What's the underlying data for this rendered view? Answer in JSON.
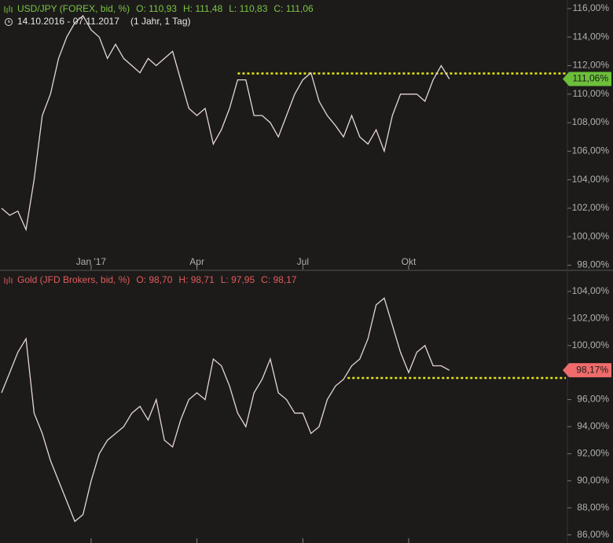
{
  "chart_data": [
    {
      "type": "line",
      "title": "USD/JPY (FOREX, bid, %)",
      "ohlc": [
        "O: 110,93",
        "H: 111,48",
        "L: 110,83",
        "C: 111,06"
      ],
      "subtitle": "14.10.2016 - 07.11.2017",
      "range_note": "(1 Jahr, 1 Tag)",
      "title_color": "#7cc443",
      "color": "#e6d6d6",
      "categories": [
        null,
        null,
        null,
        null,
        null,
        null,
        null,
        null,
        null,
        null,
        null,
        "Jan '17",
        null,
        null,
        null,
        null,
        null,
        null,
        null,
        null,
        null,
        null,
        null,
        null,
        "Apr",
        null,
        null,
        null,
        null,
        null,
        null,
        null,
        null,
        null,
        null,
        null,
        null,
        "Jul",
        null,
        null,
        null,
        null,
        null,
        null,
        null,
        null,
        null,
        null,
        null,
        null,
        "Okt",
        null,
        null,
        null,
        null,
        null
      ],
      "values": [
        102.0,
        101.5,
        101.8,
        100.5,
        104.0,
        108.5,
        110.0,
        112.5,
        114.0,
        115.0,
        115.5,
        114.5,
        114.0,
        112.5,
        113.5,
        112.5,
        112.0,
        111.5,
        112.5,
        112.0,
        112.5,
        113.0,
        111.0,
        109.0,
        108.5,
        109.0,
        106.5,
        107.5,
        109.0,
        111.0,
        111.0,
        108.5,
        108.5,
        108.0,
        107.0,
        108.5,
        110.0,
        111.0,
        111.5,
        109.5,
        108.5,
        107.8,
        107.0,
        108.5,
        107.0,
        106.5,
        107.5,
        106.0,
        108.5,
        110.0,
        110.0,
        110.0,
        109.5,
        111.0,
        112.0,
        111.06
      ],
      "ylim": [
        97.7,
        116.6
      ],
      "yticks": [
        {
          "value": 98,
          "label": "98,00%"
        },
        {
          "value": 100,
          "label": "100,00%"
        },
        {
          "value": 102,
          "label": "102,00%"
        },
        {
          "value": 104,
          "label": "104,00%"
        },
        {
          "value": 106,
          "label": "106,00%"
        },
        {
          "value": 108,
          "label": "108,00%"
        },
        {
          "value": 110,
          "label": "110,00%"
        },
        {
          "value": 112,
          "label": "112,00%"
        },
        {
          "value": 114,
          "label": "114,00%"
        },
        {
          "value": 116,
          "label": "116,00%"
        }
      ],
      "reference_line": {
        "value": 111.45,
        "start_index": 29,
        "color": "#e8e817"
      },
      "last_label": {
        "value": 111.06,
        "label": "111,06%",
        "color": "#6cbf3a"
      }
    },
    {
      "type": "line",
      "title": "Gold (JFD Brokers, bid, %)",
      "ohlc": [
        "O: 98,70",
        "H: 98,71",
        "L: 97,95",
        "C: 98,17"
      ],
      "title_color": "#e25b5b",
      "color": "#e6d6d6",
      "values": [
        96.5,
        98.0,
        99.5,
        100.5,
        95.0,
        93.5,
        91.5,
        90.0,
        88.5,
        87.0,
        87.5,
        90.0,
        92.0,
        93.0,
        93.5,
        94.0,
        95.0,
        95.5,
        94.5,
        96.0,
        93.0,
        92.5,
        94.5,
        96.0,
        96.5,
        96.0,
        99.0,
        98.5,
        97.0,
        95.0,
        94.0,
        96.5,
        97.5,
        99.0,
        96.5,
        96.0,
        95.0,
        95.0,
        93.5,
        94.0,
        96.0,
        97.0,
        97.5,
        98.5,
        99.0,
        100.5,
        103.0,
        103.5,
        101.5,
        99.5,
        98.0,
        99.5,
        100.0,
        98.5,
        98.5,
        98.17
      ],
      "ylim": [
        85.4,
        105.5
      ],
      "yticks": [
        {
          "value": 86,
          "label": "86,00%"
        },
        {
          "value": 88,
          "label": "88,00%"
        },
        {
          "value": 90,
          "label": "90,00%"
        },
        {
          "value": 92,
          "label": "92,00%"
        },
        {
          "value": 94,
          "label": "94,00%"
        },
        {
          "value": 96,
          "label": "96,00%"
        },
        {
          "value": 98,
          "label": "98,00%"
        },
        {
          "value": 100,
          "label": "100,00%"
        },
        {
          "value": 102,
          "label": "102,00%"
        },
        {
          "value": 104,
          "label": "104,00%"
        }
      ],
      "reference_line": {
        "value": 97.6,
        "start_index": 42.5,
        "color": "#e8e817"
      },
      "last_label": {
        "value": 98.17,
        "label": "98,17%",
        "color": "#f06b6b"
      }
    }
  ]
}
